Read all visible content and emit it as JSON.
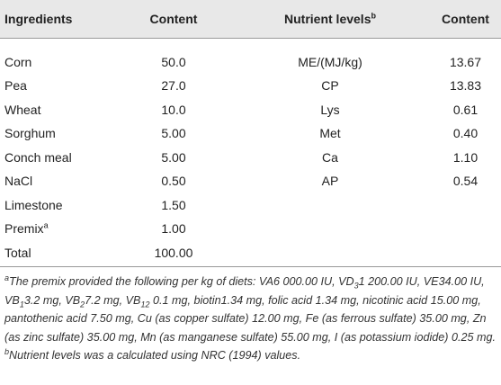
{
  "table": {
    "header": [
      "Ingredients",
      "Content",
      {
        "text": "Nutrient levels",
        "sup": "b"
      },
      "Content"
    ],
    "rows": [
      [
        "Corn",
        "50.0",
        "ME/(MJ/kg)",
        "13.67"
      ],
      [
        "Pea",
        "27.0",
        "CP",
        "13.83"
      ],
      [
        "Wheat",
        "10.0",
        "Lys",
        "0.61"
      ],
      [
        "Sorghum",
        "5.00",
        "Met",
        "0.40"
      ],
      [
        "Conch meal",
        "5.00",
        "Ca",
        "1.10"
      ],
      [
        "NaCl",
        "0.50",
        "AP",
        "0.54"
      ],
      [
        "Limestone",
        "1.50"
      ],
      [
        {
          "text": "Premix",
          "sup": "a"
        },
        "1.00"
      ],
      [
        "Total",
        "100.00"
      ]
    ]
  },
  "notes": [
    {
      "marker": "a",
      "parts": [
        {
          "text": "The premix provided the following per kg of diets: VA6 000.00 IU, VD"
        },
        {
          "text": "3",
          "style": "sub"
        },
        {
          "text": "1 200.00 IU, VE34.00 IU, VB"
        },
        {
          "text": "1",
          "style": "sub"
        },
        {
          "text": "3.2 mg, VB"
        },
        {
          "text": "2",
          "style": "sub"
        },
        {
          "text": "7.2 mg, VB"
        },
        {
          "text": "12",
          "style": "sub"
        },
        {
          "text": " 0.1 mg, biotin1.34 mg, folic acid 1.34 mg, nicotinic acid 15.00 mg, pantothenic acid 7.50 mg, Cu (as copper sulfate) 12.00 mg, Fe (as ferrous sulfate) 35.00 mg, Zn (as zinc sulfate) 35.00 mg, Mn (as manganese sulfate) 55.00 mg, I (as potassium iodide) 0.25 mg."
        }
      ]
    },
    {
      "marker": "b",
      "parts": [
        {
          "text": "Nutrient levels was a calculated using NRC (1994) values."
        }
      ]
    }
  ]
}
